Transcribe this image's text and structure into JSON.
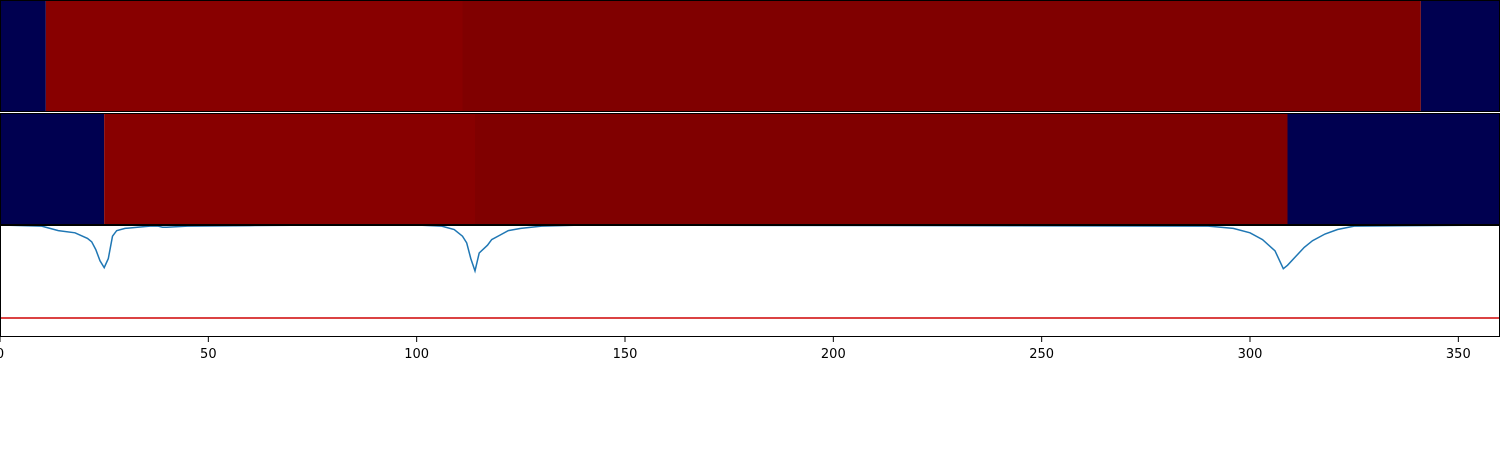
{
  "chart_data": {
    "type": "line",
    "xlim": [
      0,
      360
    ],
    "x_ticks": [
      0,
      50,
      100,
      150,
      200,
      250,
      300,
      350
    ],
    "x_tick_labels": [
      "0",
      "50",
      "100",
      "150",
      "200",
      "250",
      "300",
      "350"
    ],
    "segment_rows": [
      {
        "name": "",
        "segments": [
          {
            "start": 0,
            "end": 11,
            "color": "#000050"
          },
          {
            "start": 11,
            "end": 111,
            "color": "#880000"
          },
          {
            "start": 111,
            "end": 341,
            "color": "#800000"
          },
          {
            "start": 341,
            "end": 360,
            "color": "#000050"
          }
        ]
      },
      {
        "name": "",
        "segments": [
          {
            "start": 0,
            "end": 25,
            "color": "#000050"
          },
          {
            "start": 25,
            "end": 114,
            "color": "#880000"
          },
          {
            "start": 114,
            "end": 309,
            "color": "#800000"
          },
          {
            "start": 309,
            "end": 360,
            "color": "#000050"
          }
        ]
      }
    ],
    "series": [
      {
        "name": "",
        "color": "#1f77b4",
        "points": [
          [
            0,
            1.0
          ],
          [
            10,
            0.99
          ],
          [
            14,
            0.95
          ],
          [
            18,
            0.93
          ],
          [
            21,
            0.88
          ],
          [
            22,
            0.85
          ],
          [
            23,
            0.78
          ],
          [
            24,
            0.68
          ],
          [
            25,
            0.62
          ],
          [
            26,
            0.7
          ],
          [
            27,
            0.9
          ],
          [
            28,
            0.95
          ],
          [
            30,
            0.97
          ],
          [
            33,
            0.98
          ],
          [
            36,
            0.99
          ],
          [
            38,
            0.99
          ],
          [
            39,
            0.98
          ],
          [
            40,
            0.98
          ],
          [
            45,
            0.99
          ],
          [
            60,
            0.995
          ],
          [
            70,
            0.998
          ],
          [
            100,
            1.0
          ],
          [
            106,
            0.99
          ],
          [
            109,
            0.96
          ],
          [
            111,
            0.9
          ],
          [
            112,
            0.84
          ],
          [
            113,
            0.7
          ],
          [
            114,
            0.59
          ],
          [
            115,
            0.75
          ],
          [
            117,
            0.82
          ],
          [
            118,
            0.87
          ],
          [
            120,
            0.91
          ],
          [
            122,
            0.95
          ],
          [
            125,
            0.97
          ],
          [
            130,
            0.99
          ],
          [
            140,
            1.0
          ],
          [
            290,
            0.99
          ],
          [
            296,
            0.97
          ],
          [
            300,
            0.93
          ],
          [
            303,
            0.87
          ],
          [
            306,
            0.77
          ],
          [
            308,
            0.61
          ],
          [
            309,
            0.64
          ],
          [
            311,
            0.72
          ],
          [
            313,
            0.8
          ],
          [
            315,
            0.86
          ],
          [
            318,
            0.92
          ],
          [
            321,
            0.96
          ],
          [
            325,
            0.99
          ],
          [
            360,
            1.0
          ]
        ]
      },
      {
        "name": "",
        "color": "#d62728",
        "points": [
          [
            0,
            0.17
          ],
          [
            360,
            0.17
          ]
        ]
      }
    ],
    "ylim": [
      0,
      1.0
    ],
    "grid": false
  }
}
